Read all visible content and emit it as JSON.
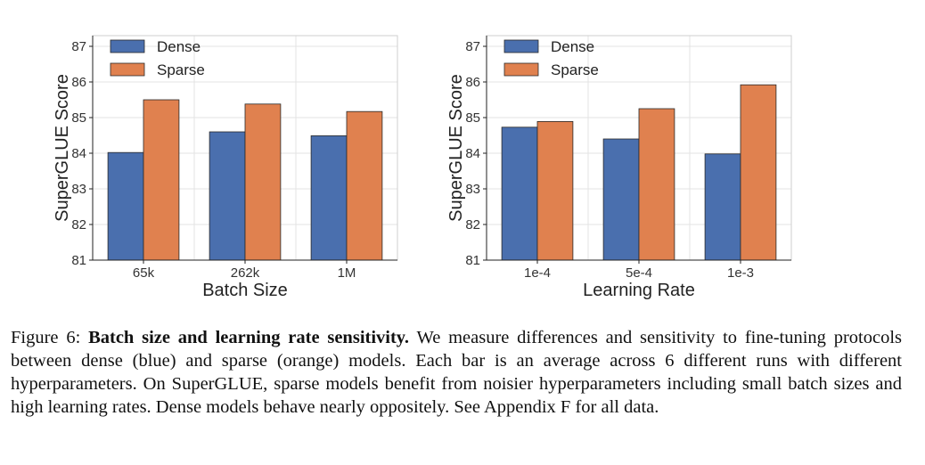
{
  "chart_data": [
    {
      "type": "bar",
      "xlabel": "Batch Size",
      "ylabel": "SuperGLUE Score",
      "categories": [
        "65k",
        "262k",
        "1M"
      ],
      "ylim": [
        81,
        87.3
      ],
      "yticks": [
        81,
        82,
        83,
        84,
        85,
        86,
        87
      ],
      "grid": true,
      "legend_position": "top-left",
      "series": [
        {
          "name": "Dense",
          "color": "#4a6fae",
          "values": [
            84.02,
            84.6,
            84.49
          ]
        },
        {
          "name": "Sparse",
          "color": "#e0814f",
          "values": [
            85.5,
            85.38,
            85.17
          ]
        }
      ]
    },
    {
      "type": "bar",
      "xlabel": "Learning Rate",
      "ylabel": "SuperGLUE Score",
      "categories": [
        "1e-4",
        "5e-4",
        "1e-3"
      ],
      "ylim": [
        81,
        87.3
      ],
      "yticks": [
        81,
        82,
        83,
        84,
        85,
        86,
        87
      ],
      "grid": true,
      "legend_position": "top-left",
      "series": [
        {
          "name": "Dense",
          "color": "#4a6fae",
          "values": [
            84.73,
            84.4,
            83.98
          ]
        },
        {
          "name": "Sparse",
          "color": "#e0814f",
          "values": [
            84.89,
            85.25,
            85.92
          ]
        }
      ]
    }
  ],
  "caption": {
    "prefix": "Figure 6: ",
    "bold": "Batch size and learning rate sensitivity.",
    "text": " We measure differences and sensitivity to fine-tuning protocols between dense (blue) and sparse (orange) models. Each bar is an average across 6 different runs with different hyperparameters. On SuperGLUE, sparse models benefit from noisier hyperparameters including small batch sizes and high learning rates. Dense models behave nearly oppositely. See Appendix F for all data."
  }
}
